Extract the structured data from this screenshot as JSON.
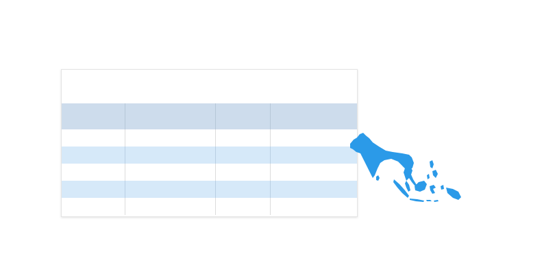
{
  "card": {
    "title": "",
    "columns": [
      "",
      "",
      "",
      ""
    ],
    "rows": [
      [
        "",
        "",
        "",
        ""
      ],
      [
        "",
        "",
        "",
        ""
      ],
      [
        "",
        "",
        "",
        ""
      ],
      [
        "",
        "",
        "",
        ""
      ],
      [
        "",
        "",
        "",
        ""
      ]
    ]
  },
  "map": {
    "icon": "south-southeast-asia-map-icon",
    "color": "#2b9ae8"
  },
  "colors": {
    "header_bg": "#cddcec",
    "stripe_bg": "#d6e9f9",
    "border": "#dcdcdc"
  }
}
